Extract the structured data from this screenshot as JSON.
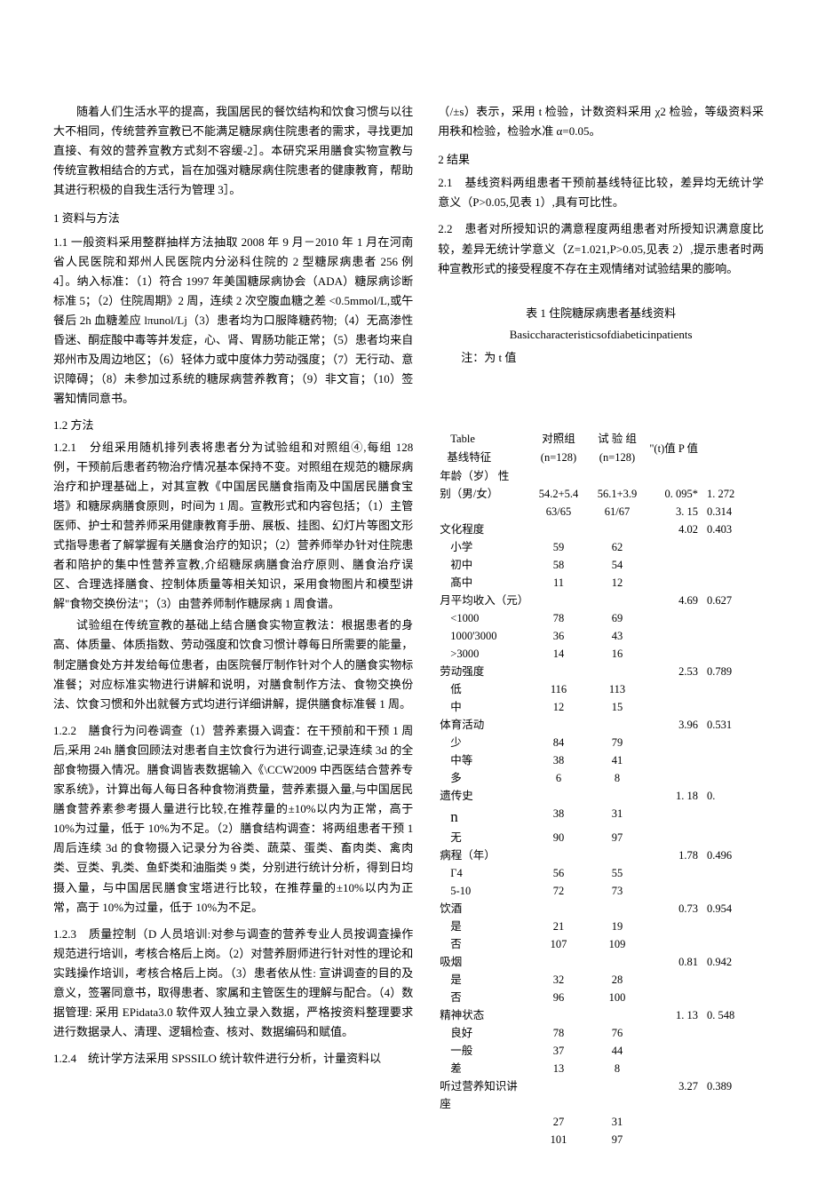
{
  "leftCol": {
    "intro": "随着人们生活水平的提高，我国居民的餐饮结构和饮食习惯与以往大不相同，传统营养宣教已不能满足糖尿病住院患者的需求，寻找更加直接、有效的营养宣教方式刻不容缓-2］。本研究采用膳食实物宣教与传统宣教相结合的方式，旨在加强对糖尿病住院患者的健康教育，帮助其进行积极的自我生活行为管理 3］。",
    "s1_head": "1 资料与方法",
    "s11": "1.1 一般资料采用整群抽样方法抽取 2008 年 9 月－2010 年 1 月在河南省人民医院和郑州人民医院内分泌科住院的 2 型糖尿病患者 256 例 4］。纳入标准：（1）符合 1997 年美国糖尿病协会（ADA）糖尿病诊断标准 5；（2）住院周期》2 周，连续 2 次空腹血糖之差 <0.5mmol/L,或午餐后 2h 血糖差应 lπunol/Lj（3）患者均为口服降糖药物;（4）无高渗性昏迷、酮症酸中毒等并发症，心、肾、胃肠功能正常；（5）患者均来自郑州市及周边地区；（6）轻体力或中度体力劳动强度；（7）无行动、意识障碍；（8）未参加过系统的糖尿病营养教育；（9）非文盲；（10）签署知情同意书。",
    "s12_head": "1.2 方法",
    "s121a": "1.2.1　分组采用随机排列表将患者分为试验组和对照组④,每组 128 例，干预前后患者药物治疗情况基本保持不变。对照组在规范的糖尿病治疗和护理基础上，对其宣教《中国居民膳食指南及中国居民膳食宝塔》和糖尿病膳食原则，时间为 1 周。宣教形式和内容包括；（1）主管医师、护士和营养师采用健康教育手册、展板、挂图、幻灯片等图文形式指导患者了解掌握有关膳食治疗的知识；（2）营养师举办针对住院患者和陪护的集中性营养宣教,介绍糖尿病膳食治疗原则、膳食治疗误区、合理选择膳食、控制体质量等相关知识，采用食物图片和模型讲解\"食物交换份法\"；（3）由营养师制作糖尿病 1 周食谱。",
    "s121b": "试验组在传统宣教的基础上结合膳食实物宣教法：根据患者的身高、体质量、体质指数、劳动强度和饮食习惯计尊每日所需要的能量，制定膳食处方并发给每位患者，由医院餐厅制作针对个人的膳食实物标准餐；对应标准实物进行讲解和说明，对膳食制作方法、食物交换份法、饮食习惯和外出就餐方式均进行详细讲解，提供膳食标准餐 1 周。",
    "s122": "1.2.2　膳食行为问卷调查（1）营养素摄入调査：在干预前和干预 1 周后,采用 24h 膳食回顾法对患者自主饮食行为进行调查,记录连续 3d 的全部食物摄入情况。膳食调皆表数据输入《\\CCW2009 中西医结合营养专家系统》，计算出每人每日各种食物消费量，营养素摄入量,与中国居民膳食营养素参考摄人量进行比较,在推荐量的±10%以内为正常，高于 10%为过量，低于 10%为不足。（2）膳食结构调查：将两组患者干预 1 周后连续 3d 的食物摄入记录分为谷类、蔬菜、蛋类、畜肉类、禽肉类、豆类、乳类、鱼虾类和油脂类 9 类，分别进行统计分析，得到日均摄入量，与中国居民膳食宝塔进行比较，在推荐量的±10%以内为正常，高于 10%为过量，低于 10%为不足。",
    "s123": "1.2.3　质量控制（D 人员培训:对参与调查的营养专业人员按调査操作规范进行培训，考核合格后上岗。（2）对营养厨师进行针对性的理论和实践操作培训，考核合格后上岗。（3）患者依从性: 宣讲调查的目的及意义，签署同意书，取得患者、家属和主管医生的理解与配合。（4）数据管理: 采用 EPidata3.0 软件双人独立录入数据，严格按资料整理要求进行数据录人、清理、逻辑检查、核对、数据编码和赋值。",
    "s124": "1.2.4　统计学方法采用 SPSSILO 统计软件进行分析，计量资料以"
  },
  "rightCol": {
    "top1": "（/±s）表示，采用 t 检验，计数资料采用 χ2 检验，等级资料采用秩和检验，检验水准 α=0.05。",
    "s2_head": "2 结果",
    "s21": "2.1　基线资料两组患者干预前基线特征比较，差异均无统计学意义（P>0.05,见表 1）,具有可比性。",
    "s22": "2.2　患者对所授知识的满意程度两组患者对所授知识满意度比较，差异无统计学意义（Z=1.021,P>0.05,见表 2）,提示患者时两种宣教形式的接受程度不存在主观情绪对试验结果的膨响。",
    "tbl_title": "表 1 住院糖尿病患者基线资料",
    "tbl_sub": "Basiccharacteristicsofdiabeticinpatients",
    "tbl_note": "注：为 t 值",
    "table": {
      "tableLabel": "Table",
      "headBase": "基线特征",
      "headC2a": "对照组",
      "headC2b": "(n=128)",
      "headC3a": "试 验 组",
      "headC3b": "(n=128)",
      "headC4": "\"(t)值 P 值",
      "rows": [
        {
          "c1": "年龄（岁） 性",
          "c2": "",
          "c3": "",
          "c4": "",
          "c5": ""
        },
        {
          "c1": "别（男/女）",
          "c2": "54.2+5.4",
          "c3": "56.1+3.9",
          "c4": "0. 095*",
          "c5": "1. 272",
          "split": true,
          "c2b": "63/65",
          "c3b": "61/67",
          "c4b": "3. 15",
          "c5b": "0.314"
        },
        {
          "c1": "文化程度",
          "c2": "",
          "c3": "",
          "c4": "4.02",
          "c5": "0.403"
        },
        {
          "c1": "小学",
          "indent": true,
          "c2": "59",
          "c3": "62",
          "c4": "",
          "c5": ""
        },
        {
          "c1": "初中",
          "indent": true,
          "c2": "58",
          "c3": "54",
          "c4": "",
          "c5": ""
        },
        {
          "c1": "髙中",
          "indent": true,
          "c2": "11",
          "c3": "12",
          "c4": "",
          "c5": ""
        },
        {
          "c1": "月平均收入（元）",
          "c2": "",
          "c3": "",
          "c4": "4.69",
          "c5": "0.627"
        },
        {
          "c1": "<1000",
          "indent": true,
          "c2": "78",
          "c3": "69",
          "c4": "",
          "c5": ""
        },
        {
          "c1": "1000'3000",
          "indent": true,
          "c2": "36",
          "c3": "43",
          "c4": "",
          "c5": ""
        },
        {
          "c1": ">3000",
          "indent": true,
          "c2": "14",
          "c3": "16",
          "c4": "",
          "c5": ""
        },
        {
          "c1": "劳动强度",
          "c2": "",
          "c3": "",
          "c4": "2.53",
          "c5": "0.789"
        },
        {
          "c1": "低",
          "indent": true,
          "c2": "116",
          "c3": "113",
          "c4": "",
          "c5": ""
        },
        {
          "c1": "中",
          "indent": true,
          "c2": "12",
          "c3": "15",
          "c4": "",
          "c5": ""
        },
        {
          "c1": "体育活动",
          "c2": "",
          "c3": "",
          "c4": "3.96",
          "c5": "0.531"
        },
        {
          "c1": "少",
          "indent": true,
          "c2": "84",
          "c3": "79",
          "c4": "",
          "c5": ""
        },
        {
          "c1": "中等",
          "indent": true,
          "c2": "38",
          "c3": "41",
          "c4": "",
          "c5": ""
        },
        {
          "c1": "多",
          "indent": true,
          "c2": "6",
          "c3": "8",
          "c4": "",
          "c5": ""
        },
        {
          "c1": "遗传史",
          "c2": "",
          "c3": "",
          "c4": "1. 18",
          "c5": "0."
        },
        {
          "c1": "n",
          "indent": true,
          "big": true,
          "c2": "38",
          "c3": "31",
          "c4": "",
          "c5": ""
        },
        {
          "c1": "无",
          "indent": true,
          "c2": "90",
          "c3": "97",
          "c4": "",
          "c5": ""
        },
        {
          "c1": "病程（年）",
          "c2": "",
          "c3": "",
          "c4": "1.78",
          "c5": "0.496"
        },
        {
          "c1": "Г4",
          "indent": true,
          "c2": "56",
          "c3": "55",
          "c4": "",
          "c5": ""
        },
        {
          "c1": "5-10",
          "indent": true,
          "c2": "72",
          "c3": "73",
          "c4": "",
          "c5": ""
        },
        {
          "c1": "饮酒",
          "c2": "",
          "c3": "",
          "c4": "0.73",
          "c5": "0.954"
        },
        {
          "c1": "是",
          "indent": true,
          "c2": "21",
          "c3": "19",
          "c4": "",
          "c5": ""
        },
        {
          "c1": "否",
          "indent": true,
          "c2": "107",
          "c3": "109",
          "c4": "",
          "c5": ""
        },
        {
          "c1": "吸烟",
          "c2": "",
          "c3": "",
          "c4": "0.81",
          "c5": "0.942"
        },
        {
          "c1": "是",
          "indent": true,
          "c2": "32",
          "c3": "28",
          "c4": "",
          "c5": ""
        },
        {
          "c1": "否",
          "indent": true,
          "c2": "96",
          "c3": "100",
          "c4": "",
          "c5": ""
        },
        {
          "c1": "精神状态",
          "c2": "",
          "c3": "",
          "c4": "1. 13",
          "c5": "0. 548"
        },
        {
          "c1": "良好",
          "indent": true,
          "c2": "78",
          "c3": "76",
          "c4": "",
          "c5": ""
        },
        {
          "c1": "一般",
          "indent": true,
          "c2": "37",
          "c3": "44",
          "c4": "",
          "c5": ""
        },
        {
          "c1": "差",
          "indent": true,
          "c2": "13",
          "c3": "8",
          "c4": "",
          "c5": ""
        },
        {
          "c1": "听过营养知识讲座",
          "c2": "",
          "c3": "",
          "c4": "3.27",
          "c5": "0.389"
        },
        {
          "c1": "",
          "indent": true,
          "c2": "27",
          "c3": "31",
          "c4": "",
          "c5": ""
        },
        {
          "c1": "",
          "indent": true,
          "c2": "101",
          "c3": "97",
          "c4": "",
          "c5": ""
        }
      ]
    }
  }
}
